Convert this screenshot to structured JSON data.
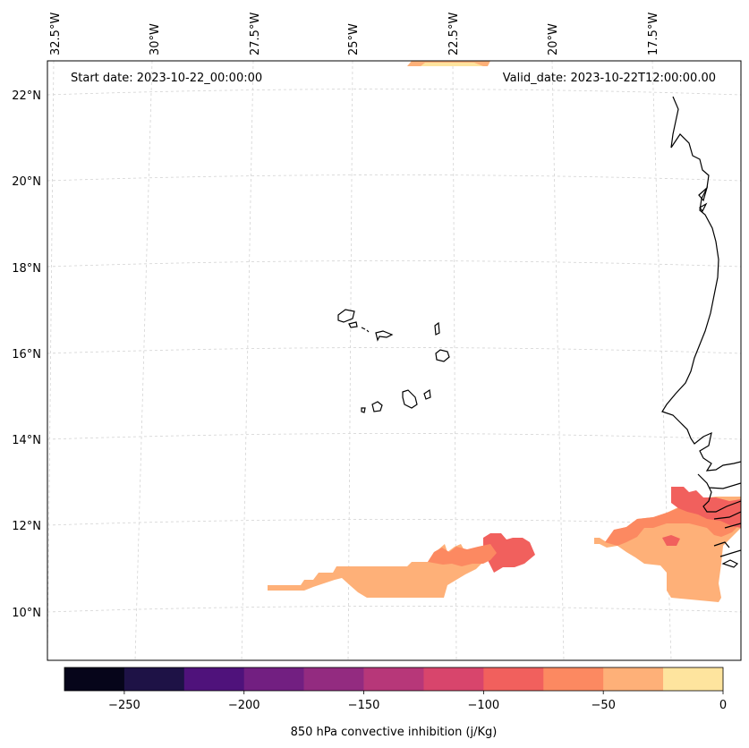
{
  "map": {
    "start_label": "Start date: 2023-10-22_00:00:00",
    "valid_label": "Valid_date: 2023-10-22T12:00:00.00",
    "lon_labels": [
      "32.5°W",
      "30°W",
      "27.5°W",
      "25°W",
      "22.5°W",
      "20°W",
      "17.5°W"
    ],
    "lat_labels": [
      "22°N",
      "20°N",
      "18°N",
      "16°N",
      "14°N",
      "12°N",
      "10°N"
    ]
  },
  "colorbar": {
    "label": "850 hPa convective inhibition (j/Kg)",
    "ticks": [
      "−250",
      "−200",
      "−150",
      "−100",
      "−50",
      "0"
    ],
    "range": [
      -275,
      0
    ],
    "step": 25,
    "colors": [
      "#06051a",
      "#1e1246",
      "#4f127b",
      "#721f81",
      "#932b80",
      "#b73779",
      "#d8456c",
      "#f1605d",
      "#fc8961",
      "#feb078",
      "#fee49e"
    ]
  }
}
